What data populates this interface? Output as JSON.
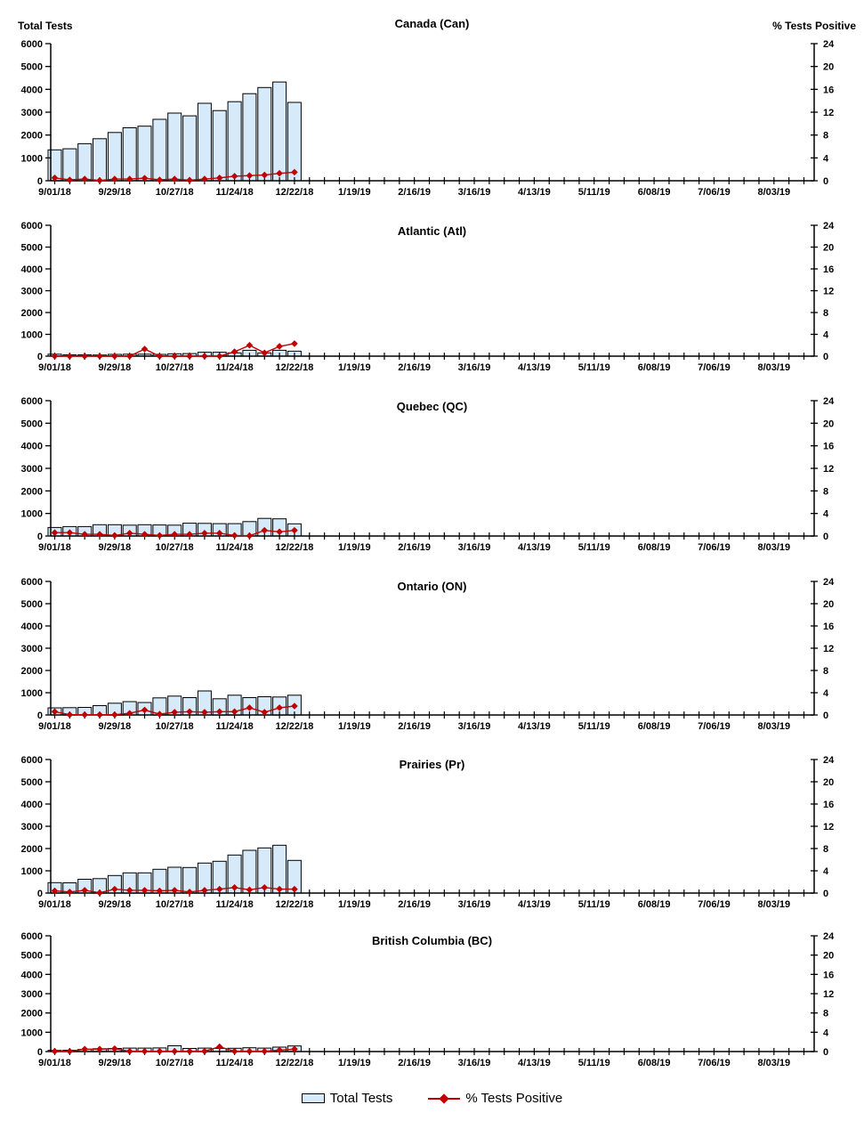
{
  "headers": {
    "left_axis_title": "Total Tests",
    "right_axis_title": "% Tests Positive"
  },
  "axes": {
    "y_left": {
      "min": 0,
      "max": 6000,
      "step": 1000,
      "tick_labels": [
        "0",
        "1000",
        "2000",
        "3000",
        "4000",
        "5000",
        "6000"
      ]
    },
    "y_right": {
      "min": 0,
      "max": 24,
      "step": 4,
      "tick_labels": [
        "0",
        "4",
        "8",
        "12",
        "16",
        "20",
        "24"
      ]
    },
    "x_tick_labels": [
      "9/01/18",
      "9/29/18",
      "10/27/18",
      "11/24/18",
      "12/22/18",
      "1/19/19",
      "2/16/19",
      "3/16/19",
      "4/13/19",
      "5/11/19",
      "6/08/19",
      "7/06/19",
      "8/03/19"
    ],
    "weeks_per_label": 4,
    "weekly_minor_ticks": 51,
    "grid": "off",
    "legend_position": "bottom-center"
  },
  "chart_data": [
    {
      "type": "bar",
      "title": "Canada (Can)",
      "categories": [
        "9/01/18",
        "9/08/18",
        "9/15/18",
        "9/22/18",
        "9/29/18",
        "10/06/18",
        "10/13/18",
        "10/20/18",
        "10/27/18",
        "11/03/18",
        "11/10/18",
        "11/17/18",
        "11/24/18",
        "12/01/18",
        "12/08/18",
        "12/15/18",
        "12/22/18"
      ],
      "series": [
        {
          "name": "Total Tests",
          "axis": "left",
          "type": "bar",
          "values": [
            1350,
            1400,
            1620,
            1840,
            2110,
            2320,
            2390,
            2690,
            2960,
            2840,
            3390,
            3070,
            3460,
            3810,
            4080,
            4320,
            3430
          ]
        },
        {
          "name": "% Tests Positive",
          "axis": "right",
          "type": "line",
          "values": [
            0.5,
            0.15,
            0.3,
            0.05,
            0.3,
            0.3,
            0.45,
            0.15,
            0.3,
            0.1,
            0.3,
            0.5,
            0.8,
            0.9,
            1.0,
            1.3,
            1.5
          ]
        }
      ],
      "ylim_left": [
        0,
        6000
      ],
      "ylim_right": [
        0,
        24
      ]
    },
    {
      "type": "bar",
      "title": "Atlantic (Atl)",
      "categories": [
        "9/01/18",
        "9/08/18",
        "9/15/18",
        "9/22/18",
        "9/29/18",
        "10/06/18",
        "10/13/18",
        "10/20/18",
        "10/27/18",
        "11/03/18",
        "11/10/18",
        "11/17/18",
        "11/24/18",
        "12/01/18",
        "12/08/18",
        "12/15/18",
        "12/22/18"
      ],
      "series": [
        {
          "name": "Total Tests",
          "axis": "left",
          "type": "bar",
          "values": [
            90,
            60,
            60,
            55,
            80,
            90,
            90,
            80,
            110,
            120,
            180,
            180,
            150,
            270,
            150,
            270,
            230
          ]
        },
        {
          "name": "% Tests Positive",
          "axis": "right",
          "type": "line",
          "values": [
            0,
            0,
            0,
            0,
            0,
            0,
            1.3,
            0,
            0,
            0,
            0,
            0,
            0.8,
            2.0,
            0.6,
            1.8,
            2.3
          ]
        }
      ],
      "ylim_left": [
        0,
        6000
      ],
      "ylim_right": [
        0,
        24
      ]
    },
    {
      "type": "bar",
      "title": "Quebec (QC)",
      "categories": [
        "9/01/18",
        "9/08/18",
        "9/15/18",
        "9/22/18",
        "9/29/18",
        "10/06/18",
        "10/13/18",
        "10/20/18",
        "10/27/18",
        "11/03/18",
        "11/10/18",
        "11/17/18",
        "11/24/18",
        "12/01/18",
        "12/08/18",
        "12/15/18",
        "12/22/18"
      ],
      "series": [
        {
          "name": "Total Tests",
          "axis": "left",
          "type": "bar",
          "values": [
            380,
            420,
            420,
            500,
            500,
            480,
            500,
            490,
            480,
            570,
            560,
            550,
            550,
            640,
            780,
            760,
            540
          ]
        },
        {
          "name": "% Tests Positive",
          "axis": "right",
          "type": "line",
          "values": [
            0.6,
            0.6,
            0.3,
            0.3,
            0.1,
            0.5,
            0.3,
            0.1,
            0.3,
            0.3,
            0.5,
            0.5,
            0.1,
            0.05,
            1.0,
            0.75,
            1.0
          ]
        }
      ],
      "ylim_left": [
        0,
        6000
      ],
      "ylim_right": [
        0,
        24
      ]
    },
    {
      "type": "bar",
      "title": "Ontario (ON)",
      "categories": [
        "9/01/18",
        "9/08/18",
        "9/15/18",
        "9/22/18",
        "9/29/18",
        "10/06/18",
        "10/13/18",
        "10/20/18",
        "10/27/18",
        "11/03/18",
        "11/10/18",
        "11/17/18",
        "11/24/18",
        "12/01/18",
        "12/08/18",
        "12/15/18",
        "12/22/18"
      ],
      "series": [
        {
          "name": "Total Tests",
          "axis": "left",
          "type": "bar",
          "values": [
            320,
            330,
            340,
            420,
            530,
            600,
            560,
            770,
            850,
            780,
            1080,
            730,
            890,
            780,
            820,
            810,
            890
          ]
        },
        {
          "name": "% Tests Positive",
          "axis": "right",
          "type": "line",
          "values": [
            0.6,
            0.05,
            0.05,
            0.05,
            0.05,
            0.3,
            0.9,
            0.15,
            0.5,
            0.6,
            0.5,
            0.6,
            0.6,
            1.3,
            0.5,
            1.3,
            1.6
          ]
        }
      ],
      "ylim_left": [
        0,
        6000
      ],
      "ylim_right": [
        0,
        24
      ]
    },
    {
      "type": "bar",
      "title": "Prairies (Pr)",
      "categories": [
        "9/01/18",
        "9/08/18",
        "9/15/18",
        "9/22/18",
        "9/29/18",
        "10/06/18",
        "10/13/18",
        "10/20/18",
        "10/27/18",
        "11/03/18",
        "11/10/18",
        "11/17/18",
        "11/24/18",
        "12/01/18",
        "12/08/18",
        "12/15/18",
        "12/22/18"
      ],
      "series": [
        {
          "name": "Total Tests",
          "axis": "left",
          "type": "bar",
          "values": [
            470,
            460,
            620,
            650,
            790,
            910,
            910,
            1070,
            1160,
            1150,
            1350,
            1430,
            1710,
            1920,
            2030,
            2150,
            1470
          ]
        },
        {
          "name": "% Tests Positive",
          "axis": "right",
          "type": "line",
          "values": [
            0.4,
            0.2,
            0.5,
            0.05,
            0.7,
            0.5,
            0.5,
            0.4,
            0.5,
            0.2,
            0.5,
            0.7,
            1.0,
            0.6,
            1.0,
            0.7,
            0.7
          ]
        }
      ],
      "ylim_left": [
        0,
        6000
      ],
      "ylim_right": [
        0,
        24
      ]
    },
    {
      "type": "bar",
      "title": "British Columbia (BC)",
      "categories": [
        "9/01/18",
        "9/08/18",
        "9/15/18",
        "9/22/18",
        "9/29/18",
        "10/06/18",
        "10/13/18",
        "10/20/18",
        "10/27/18",
        "11/03/18",
        "11/10/18",
        "11/17/18",
        "11/24/18",
        "12/01/18",
        "12/08/18",
        "12/15/18",
        "12/22/18"
      ],
      "series": [
        {
          "name": "Total Tests",
          "axis": "left",
          "type": "bar",
          "values": [
            60,
            70,
            110,
            150,
            160,
            180,
            180,
            190,
            300,
            160,
            180,
            160,
            170,
            200,
            180,
            230,
            290
          ]
        },
        {
          "name": "% Tests Positive",
          "axis": "right",
          "type": "line",
          "values": [
            0.05,
            0.05,
            0.5,
            0.5,
            0.6,
            0.05,
            0.05,
            0.05,
            0.05,
            0.05,
            0.05,
            1.0,
            0.05,
            0.05,
            0.05,
            0.3,
            0.5
          ]
        }
      ],
      "ylim_left": [
        0,
        6000
      ],
      "ylim_right": [
        0,
        24
      ]
    }
  ],
  "legend": {
    "items": [
      {
        "label": "Total Tests",
        "marker": "bar-swatch"
      },
      {
        "label": "% Tests Positive",
        "marker": "line-diamond"
      }
    ]
  },
  "colors": {
    "bar_fill": "#D6EAF9",
    "bar_border": "#000000",
    "line": "#C00000",
    "axis": "#000000",
    "text": "#000000"
  }
}
